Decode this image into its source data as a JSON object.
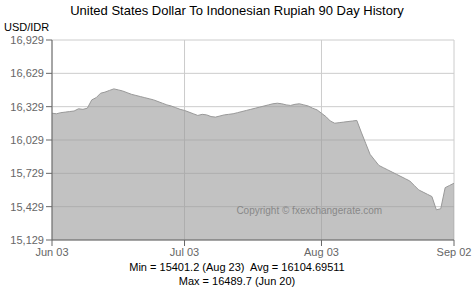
{
  "chart_data": {
    "type": "area",
    "title": "United States Dollar To Indonesian Rupiah 90 Day History",
    "y_label": "USD/IDR",
    "categories": [
      "Jun 03",
      null,
      null,
      null,
      null,
      null,
      null,
      null,
      null,
      null,
      null,
      null,
      null,
      null,
      null,
      null,
      null,
      null,
      null,
      null,
      null,
      null,
      null,
      null,
      null,
      null,
      null,
      null,
      null,
      null,
      "Jul 03",
      null,
      null,
      null,
      null,
      null,
      null,
      null,
      null,
      null,
      null,
      null,
      null,
      null,
      null,
      null,
      null,
      null,
      null,
      null,
      null,
      null,
      null,
      null,
      null,
      null,
      null,
      null,
      null,
      null,
      null,
      "Aug 03",
      null,
      null,
      null,
      null,
      null,
      null,
      null,
      null,
      null,
      null,
      null,
      null,
      null,
      null,
      null,
      null,
      null,
      null,
      null,
      null,
      null,
      null,
      null,
      null,
      null,
      null,
      null,
      null,
      null,
      "Sep 02"
    ],
    "values": [
      16270,
      16265,
      16275,
      16280,
      16285,
      16290,
      16310,
      16305,
      16315,
      16390,
      16410,
      16450,
      16460,
      16475,
      16489,
      16480,
      16470,
      16455,
      16440,
      16430,
      16420,
      16410,
      16400,
      16390,
      16375,
      16360,
      16345,
      16335,
      16320,
      16305,
      16295,
      16280,
      16265,
      16250,
      16260,
      16255,
      16240,
      16235,
      16245,
      16255,
      16260,
      16265,
      16275,
      16285,
      16295,
      16305,
      16315,
      16325,
      16335,
      16345,
      16355,
      16360,
      16355,
      16345,
      16340,
      16350,
      16355,
      16345,
      16335,
      16315,
      16300,
      16270,
      16240,
      16200,
      16180,
      16185,
      16190,
      16195,
      16200,
      16205,
      16100,
      16000,
      15900,
      15850,
      15800,
      15780,
      15760,
      15740,
      15720,
      15700,
      15680,
      15660,
      15620,
      15580,
      15560,
      15540,
      15520,
      15401,
      15410,
      15600,
      15620,
      15640
    ],
    "color": "#999999",
    "ylim": [
      15129,
      16929
    ],
    "yticks": [
      {
        "value": 15129,
        "label": "15,129"
      },
      {
        "value": 15429,
        "label": "15,429"
      },
      {
        "value": 15729,
        "label": "15,729"
      },
      {
        "value": 16029,
        "label": "16,029"
      },
      {
        "value": 16329,
        "label": "16,329"
      },
      {
        "value": 16629,
        "label": "16,629"
      },
      {
        "value": 16929,
        "label": "16,929"
      }
    ],
    "grid": true,
    "annotations": [
      "Copyright © fxexchangerate.com",
      "Min = 15401.2 (Aug 23)  Avg = 16104.69511",
      "Max = 16489.7 (Jun 20)"
    ]
  }
}
